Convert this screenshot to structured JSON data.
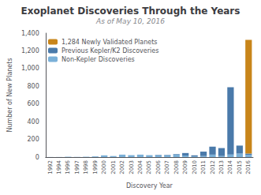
{
  "chart_data": {
    "type": "bar",
    "title": "Exoplanet Discoveries Through the Years",
    "subtitle": "As of May 10, 2016",
    "xlabel": "Discovery Year",
    "ylabel": "Number of New Planets",
    "categories": [
      "1992",
      "1994",
      "1996",
      "1997",
      "1998",
      "1999",
      "2000",
      "2001",
      "2002",
      "2003",
      "2004",
      "2005",
      "2006",
      "2007",
      "2008",
      "2009",
      "2010",
      "2011",
      "2012",
      "2013",
      "2014",
      "2015",
      "2016"
    ],
    "series": [
      {
        "name": "Non-Kepler Discoveries",
        "color": "#7ab0d8",
        "values": [
          1,
          1,
          4,
          2,
          4,
          8,
          20,
          12,
          28,
          22,
          28,
          22,
          22,
          22,
          28,
          18,
          8,
          12,
          28,
          12,
          30,
          40,
          25
        ]
      },
      {
        "name": "Previous Kepler/K2 Discoveries",
        "color": "#4a7aaa",
        "values": [
          0,
          0,
          0,
          0,
          0,
          0,
          0,
          0,
          0,
          0,
          0,
          0,
          4,
          4,
          6,
          28,
          12,
          50,
          90,
          90,
          760,
          90,
          15
        ]
      },
      {
        "name": "1,284 Newly Validated Planets",
        "color": "#c8851a",
        "values": [
          0,
          0,
          0,
          0,
          0,
          0,
          0,
          0,
          0,
          0,
          0,
          0,
          0,
          0,
          0,
          0,
          0,
          0,
          0,
          0,
          0,
          0,
          1284
        ]
      }
    ],
    "stacked": true,
    "ylim": [
      0,
      1400
    ],
    "yticks": [
      0,
      200,
      400,
      600,
      800,
      1000,
      1200,
      1400
    ],
    "grid": false,
    "legend": "upper left"
  }
}
